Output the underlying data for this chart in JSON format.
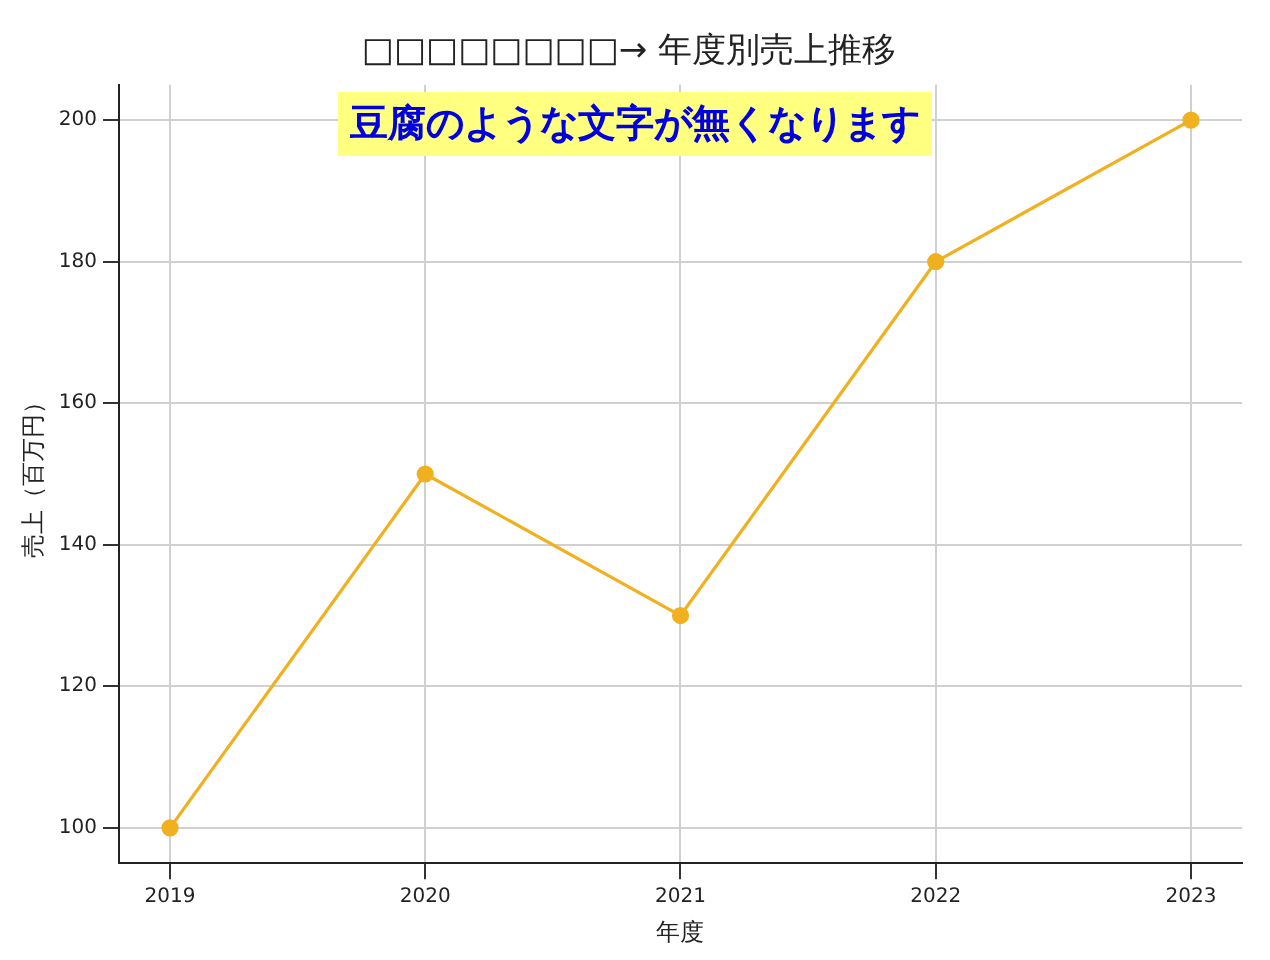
{
  "chart_data": {
    "type": "line",
    "title": "□□□□□□□□→ 年度別売上推移",
    "xlabel": "年度",
    "ylabel": "売上（百万円）",
    "annotations": [
      "豆腐のような文字が無くなります"
    ],
    "x": [
      2019,
      2020,
      2021,
      2022,
      2023
    ],
    "series": [
      {
        "color": "#f0b020",
        "values": [
          100,
          150,
          130,
          180,
          200
        ]
      }
    ],
    "xlim": [
      2018.8,
      2023.2
    ],
    "xticks": [
      2019,
      2020,
      2021,
      2022,
      2023
    ],
    "ylim": [
      95,
      205
    ],
    "yticks": [
      100,
      120,
      140,
      160,
      180,
      200
    ],
    "grid": true,
    "marker": "circle"
  }
}
